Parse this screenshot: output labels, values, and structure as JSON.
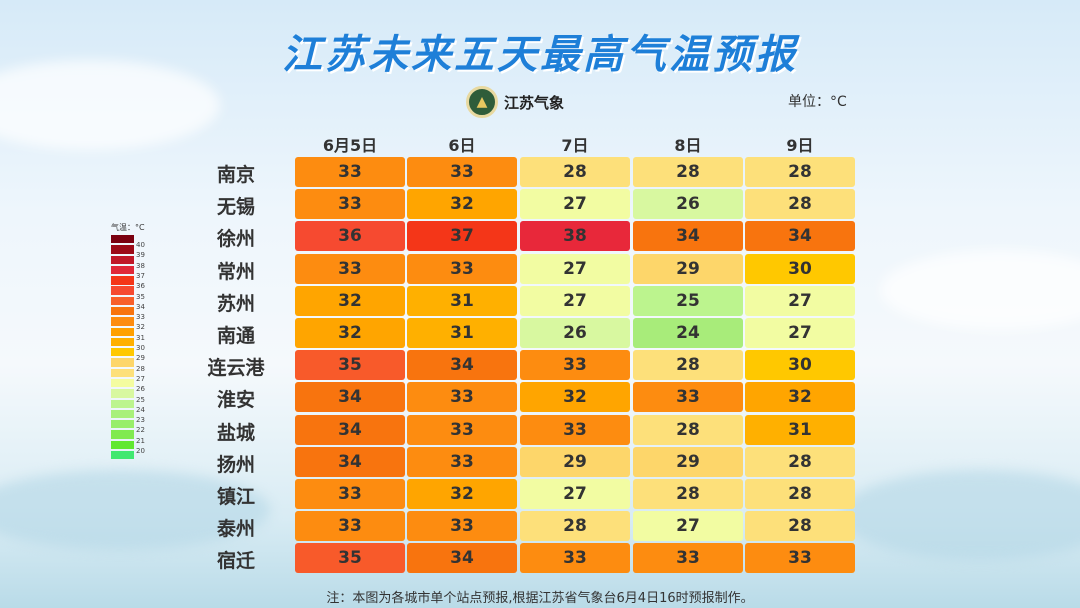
{
  "title": "江苏未来五天最高气温预报",
  "logo_text": "江苏气象",
  "unit": "单位：°C",
  "legend_title": "气温：°C",
  "note": "注：本图为各城市单个站点预报,根据江苏省气象台6月4日16时预报制作。",
  "chart_data": {
    "type": "heatmap",
    "columns": [
      "6月5日",
      "6日",
      "7日",
      "8日",
      "9日"
    ],
    "rows": [
      "南京",
      "无锡",
      "徐州",
      "常州",
      "苏州",
      "南通",
      "连云港",
      "淮安",
      "盐城",
      "扬州",
      "镇江",
      "泰州",
      "宿迁"
    ],
    "values": [
      [
        33,
        33,
        28,
        28,
        28
      ],
      [
        33,
        32,
        27,
        26,
        28
      ],
      [
        36,
        37,
        38,
        34,
        34
      ],
      [
        33,
        33,
        27,
        29,
        30
      ],
      [
        32,
        31,
        27,
        25,
        27
      ],
      [
        32,
        31,
        26,
        24,
        27
      ],
      [
        35,
        34,
        33,
        28,
        30
      ],
      [
        34,
        33,
        32,
        33,
        32
      ],
      [
        34,
        33,
        33,
        28,
        31
      ],
      [
        34,
        33,
        29,
        29,
        28
      ],
      [
        33,
        32,
        27,
        28,
        28
      ],
      [
        33,
        33,
        28,
        27,
        28
      ],
      [
        35,
        34,
        33,
        33,
        33
      ]
    ],
    "legend_labels": [
      40,
      39,
      38,
      37,
      36,
      35,
      34,
      33,
      32,
      31,
      30,
      29,
      28,
      27,
      26,
      25,
      24,
      23,
      22,
      21,
      20
    ],
    "legend_colors": [
      "#7a0010",
      "#9c0a18",
      "#c01828",
      "#e02838",
      "#f43618",
      "#f64a30",
      "#f8602a",
      "#f8740e",
      "#fd8c10",
      "#ffa000",
      "#ffb000",
      "#ffc800",
      "#fdd66a",
      "#fde07a",
      "#f4fca0",
      "#d8f8a0",
      "#bcf48e",
      "#a8f07a",
      "#98ee6a",
      "#80ea50",
      "#60e830",
      "#40e870"
    ],
    "color_scale": {
      "24": "#a8ec7a",
      "25": "#bcf48e",
      "26": "#d8f8a0",
      "27": "#f2fca2",
      "28": "#fde07a",
      "29": "#fdd66a",
      "30": "#ffc800",
      "31": "#ffb000",
      "32": "#ffa500",
      "33": "#fd8c10",
      "34": "#f8740e",
      "35": "#f85a2a",
      "36": "#f64a30",
      "37": "#f43618",
      "38": "#e8283a"
    }
  }
}
